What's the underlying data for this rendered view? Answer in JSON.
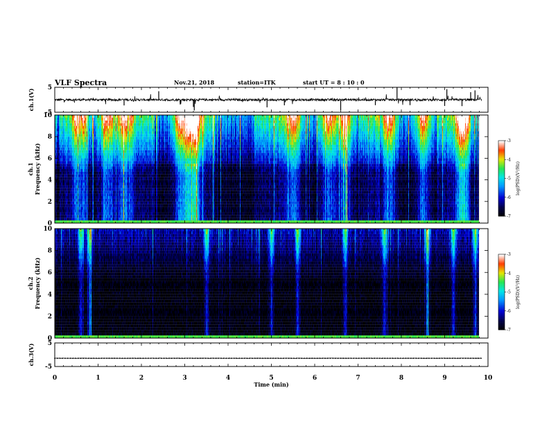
{
  "header": {
    "title": "VLF Spectra",
    "date": "Nov.21, 2018",
    "station": "station=ITK",
    "start_ut": "start  UT =   8  : 10 : 0"
  },
  "chart_data": [
    {
      "type": "line",
      "panel": "ch1-waveform",
      "ylabel": "ch.1(V)",
      "ylim": [
        -5,
        5
      ],
      "yticks": [
        "5",
        "-5"
      ],
      "xlim": [
        0,
        10
      ],
      "baseline": 0,
      "line_color": "#000000"
    },
    {
      "type": "heatmap",
      "panel": "ch1-spectrogram",
      "ylabel": "ch.1\nFrequency (kHz)",
      "ylim": [
        0,
        10
      ],
      "yticks": [
        "0",
        "2",
        "4",
        "6",
        "8",
        "10"
      ],
      "xlim": [
        0,
        9.8
      ],
      "colorbar": {
        "label": "log(PSD)(V²/Hz)",
        "range": [
          -7,
          -3
        ],
        "ticks": [
          "-3",
          "-4",
          "-5",
          "-6",
          "-7"
        ]
      },
      "bright_bursts_min": [
        0.6,
        1.2,
        1.6,
        2.9,
        3.2,
        5.5,
        6.3,
        6.7,
        7.7,
        8.5,
        9.4
      ]
    },
    {
      "type": "heatmap",
      "panel": "ch2-spectrogram",
      "ylabel": "ch.2\nFrequency (kHz)",
      "ylim": [
        0,
        10
      ],
      "yticks": [
        "0",
        "2",
        "4",
        "6",
        "8",
        "10"
      ],
      "xlim": [
        0,
        9.8
      ],
      "colorbar": {
        "label": "log(PSD)(V²/Hz)",
        "range": [
          -7,
          -3
        ],
        "ticks": [
          "-3",
          "-4",
          "-5",
          "-6",
          "-7"
        ]
      },
      "bright_bursts_min": [
        0.6,
        0.8,
        3.5,
        5.0,
        5.6,
        6.7,
        7.6,
        8.6,
        9.2,
        9.7
      ]
    },
    {
      "type": "line",
      "panel": "ch3-waveform",
      "ylabel": "ch.3(V)",
      "ylim": [
        -5,
        5
      ],
      "yticks": [
        "5",
        "-5"
      ],
      "xlim": [
        0,
        10
      ],
      "baseline": -1.5,
      "line_color": "#000000"
    }
  ],
  "x_axis": {
    "label": "Time (min)",
    "ticks": [
      "0",
      "1",
      "2",
      "3",
      "4",
      "5",
      "6",
      "7",
      "8",
      "9",
      "10"
    ]
  }
}
